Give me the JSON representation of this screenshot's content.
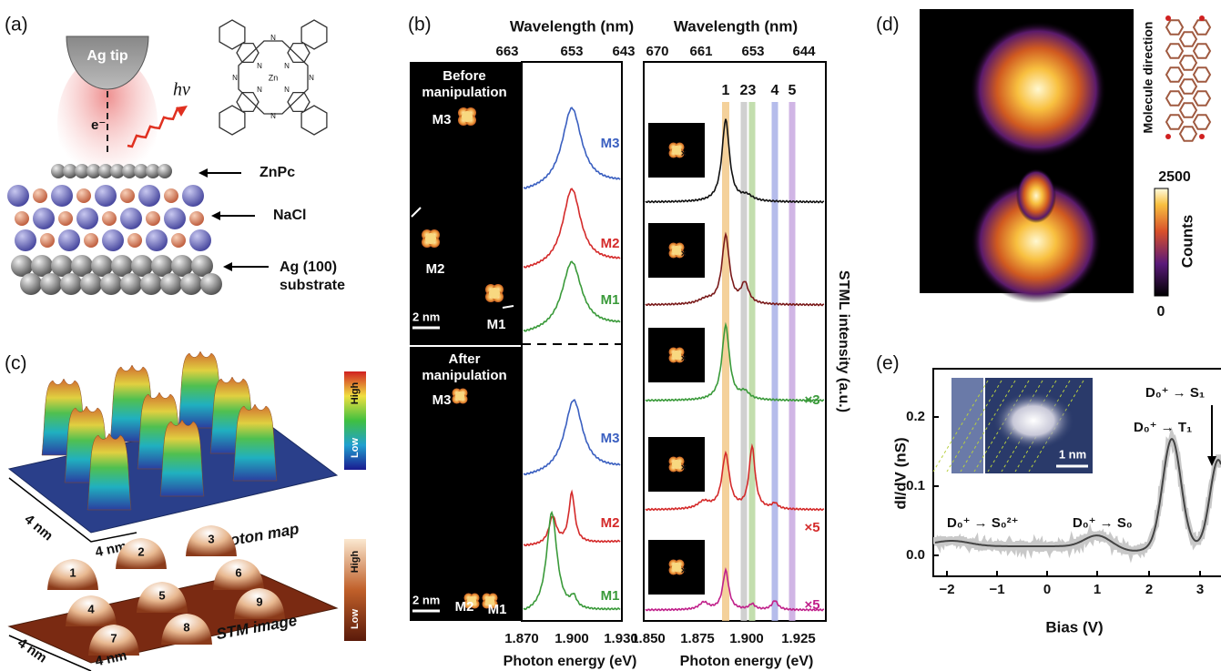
{
  "panel_a": {
    "label": "(a)",
    "tip": "Ag tip",
    "electron": "e⁻",
    "photon": "hν",
    "molecule_atoms": {
      "metal": "Zn",
      "nitrogen": "N"
    },
    "layers": {
      "znpc": "ZnPc",
      "nacl": "NaCl",
      "silver": [
        "Ag (100)",
        "substrate"
      ]
    }
  },
  "panel_b": {
    "label": "(b)",
    "wavelength_title": "Wavelength (nm)",
    "left_wavelength_ticks": [
      "663",
      "653",
      "643"
    ],
    "right_wavelength_ticks": [
      "670",
      "661",
      "653",
      "644"
    ],
    "left_energy_ticks": [
      "1.870",
      "1.900",
      "1.930"
    ],
    "right_energy_ticks": [
      "1.850",
      "1.875",
      "1.900",
      "1.925"
    ],
    "energy_title": "Photon energy (eV)",
    "intensity_title": "STML intensity (a.u.)",
    "before": [
      "Before",
      "manipulation"
    ],
    "after": [
      "After",
      "manipulation"
    ],
    "molecules": [
      "M1",
      "M2",
      "M3"
    ],
    "scale_bar": "2 nm",
    "bands": [
      "1",
      "2",
      "3",
      "4",
      "5"
    ],
    "multipliers": [
      "×3",
      "×5",
      "×5"
    ]
  },
  "panel_c": {
    "label": "(c)",
    "photon_map": "Photon map",
    "stm_image": "STM image",
    "scale_bar": "4 nm",
    "high": "High",
    "low": "Low",
    "molecule_numbers": [
      "1",
      "2",
      "3",
      "4",
      "5",
      "6",
      "7",
      "8",
      "9"
    ]
  },
  "panel_d": {
    "label": "(d)",
    "molecule_direction": "Molecule direction",
    "colorbar_max": "2500",
    "colorbar_min": "0",
    "colorbar_title": "Counts"
  },
  "panel_e": {
    "label": "(e)",
    "y_title": "dI/dV (nS)",
    "x_title": "Bias (V)",
    "yticks": [
      "0.0",
      "0.1",
      "0.2"
    ],
    "xticks": [
      "−2",
      "−1",
      "0",
      "1",
      "2",
      "3"
    ],
    "scale_bar": "1 nm",
    "transitions": [
      "D₀⁺ → S₀²⁺",
      "D₀⁺ → S₀",
      "D₀⁺ → T₁",
      "D₀⁺ → S₁"
    ]
  }
}
